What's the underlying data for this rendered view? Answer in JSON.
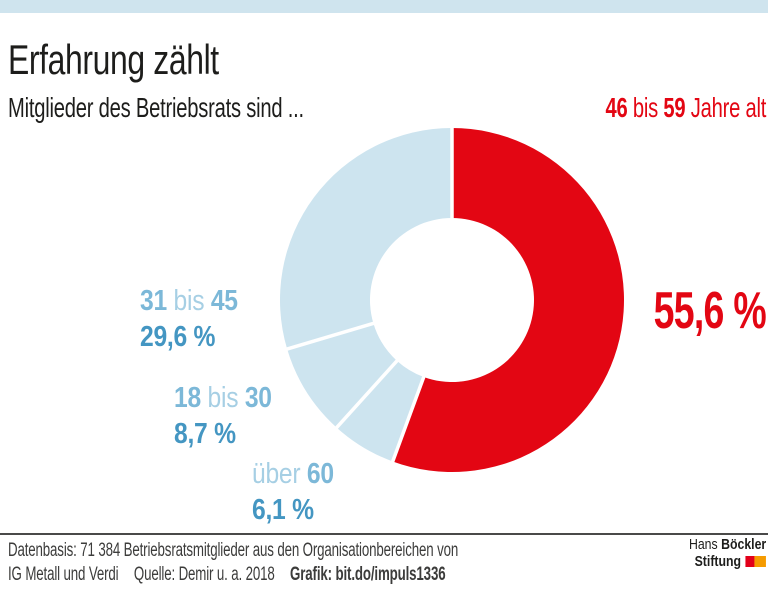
{
  "colors": {
    "red": "#e30613",
    "lightblue": "#cfe4ee",
    "pie_lightblue": "#cde4ef",
    "label_blue_light": "#a6cfe4",
    "label_blue_bold": "#7cb8d8",
    "pct_blue": "#4496c2",
    "text_dark": "#1d1d1b",
    "footer_text": "#3c3c3b",
    "logo_red": "#e2001a",
    "orange": "#f59b00"
  },
  "header": {
    "title": "Erfahrung zählt",
    "subtitle": "Mitglieder des Betriebsrats sind ..."
  },
  "highlight": {
    "num1": "46",
    "mid": " bis ",
    "num2": "59",
    "rest": " Jahre alt",
    "value": "55,6 %"
  },
  "labels": [
    {
      "light_pre": "",
      "bold1": "31",
      "light_mid": " bis ",
      "bold2": "45",
      "pct": "29,6 %"
    },
    {
      "light_pre": "",
      "bold1": "18",
      "light_mid": " bis ",
      "bold2": "30",
      "pct": "8,7 %"
    },
    {
      "light_pre": "über ",
      "bold1": "",
      "light_mid": "",
      "bold2": "60",
      "pct": "6,1 %"
    }
  ],
  "chart_data": {
    "type": "pie",
    "subtype": "donut",
    "title": "Erfahrung zählt",
    "subtitle": "Mitglieder des Betriebsrats sind ...",
    "unit": "%",
    "categories": [
      "46 bis 59 Jahre alt",
      "über 60",
      "18 bis 30",
      "31 bis 45"
    ],
    "values": [
      55.6,
      6.1,
      8.7,
      29.6
    ],
    "value_labels": [
      "55,6 %",
      "6,1 %",
      "8,7 %",
      "29,6 %"
    ],
    "slice_colors": [
      "#e30613",
      "#cde4ef",
      "#cde4ef",
      "#cde4ef"
    ],
    "start_angle_deg": 0,
    "direction": "clockwise",
    "legend_position": "around",
    "center": [
      452,
      300
    ],
    "outer_radius": 172,
    "inner_radius": 82,
    "gap_color": "#ffffff",
    "gap_width": 3.5
  },
  "footer": {
    "line1": "Datenbasis: 71 384 Betriebsratsmitglieder aus den Organisationbereichen von",
    "line2_a": "IG Metall und Verdi",
    "line2_b": "Quelle: Demir u. a. 2018",
    "line2_c": "Grafik: bit.do/impuls1336",
    "logo": {
      "name1": "Hans ",
      "name2": "Böckler",
      "name3": "Stiftung"
    }
  }
}
